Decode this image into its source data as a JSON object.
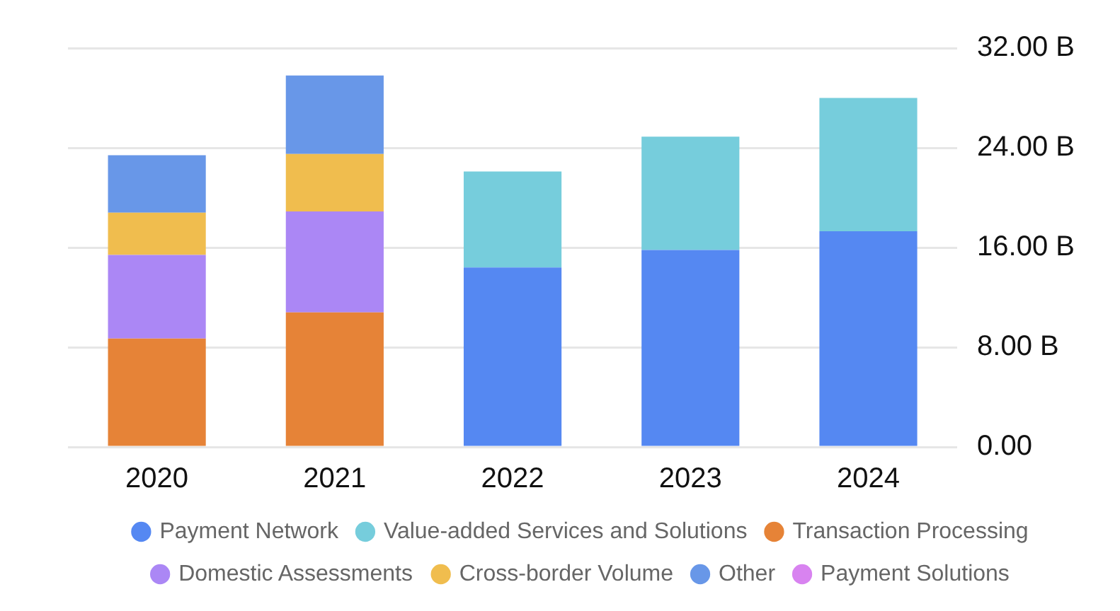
{
  "chart_data": {
    "type": "bar",
    "stacked": true,
    "categories": [
      "2020",
      "2021",
      "2022",
      "2023",
      "2024"
    ],
    "series": [
      {
        "name": "Payment Network",
        "color": "#5588f2",
        "values": [
          null,
          null,
          14.4,
          15.8,
          17.3
        ]
      },
      {
        "name": "Value-added Services and Solutions",
        "color": "#76cddc",
        "values": [
          null,
          null,
          7.7,
          9.1,
          10.7
        ]
      },
      {
        "name": "Transaction Processing",
        "color": "#e68337",
        "values": [
          8.7,
          10.8,
          null,
          null,
          null
        ]
      },
      {
        "name": "Domestic Assessments",
        "color": "#ab87f5",
        "values": [
          6.7,
          8.1,
          null,
          null,
          null
        ]
      },
      {
        "name": "Cross-border Volume",
        "color": "#f0bd4e",
        "values": [
          3.4,
          4.6,
          null,
          null,
          null
        ]
      },
      {
        "name": "Other",
        "color": "#6897e8",
        "values": [
          4.6,
          6.3,
          null,
          null,
          null
        ]
      },
      {
        "name": "Payment Solutions",
        "color": "#d883f0",
        "values": [
          null,
          null,
          null,
          null,
          null
        ]
      }
    ],
    "ylim": [
      0,
      32
    ],
    "yticks": [
      {
        "value": 0,
        "label": "0.00"
      },
      {
        "value": 8,
        "label": "8.00 B"
      },
      {
        "value": 16,
        "label": "16.00 B"
      },
      {
        "value": 24,
        "label": "24.00 B"
      },
      {
        "value": 32,
        "label": "32.00 B"
      }
    ],
    "grid": "y",
    "legend": "bottom"
  }
}
